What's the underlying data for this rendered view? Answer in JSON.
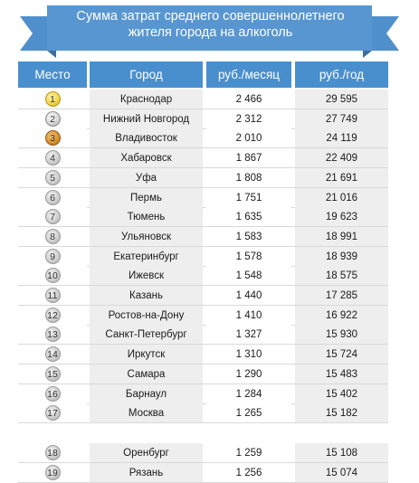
{
  "title": {
    "line1": "Сумма затрат среднего совершеннолетнего",
    "line2": "жителя города на алкоголь"
  },
  "colors": {
    "ribbon": "#4e8fcc",
    "ribbon_dark": "#3a6f9f",
    "header": "#4a8fcd",
    "alt_column": "#eeeeee"
  },
  "chart_data": {
    "type": "table",
    "columns": [
      "Место",
      "Город",
      "руб./месяц",
      "руб./год"
    ],
    "rows": [
      {
        "rank": "1",
        "city": "Краснодар",
        "month": "2 466",
        "year": "29 595",
        "medal": "gold"
      },
      {
        "rank": "2",
        "city": "Нижний Новгород",
        "month": "2 312",
        "year": "27 749",
        "medal": "silver"
      },
      {
        "rank": "3",
        "city": "Владивосток",
        "month": "2 010",
        "year": "24 119",
        "medal": "bronze"
      },
      {
        "rank": "4",
        "city": "Хабаровск",
        "month": "1 867",
        "year": "22 409",
        "medal": "grey"
      },
      {
        "rank": "5",
        "city": "Уфа",
        "month": "1 808",
        "year": "21 691",
        "medal": "grey"
      },
      {
        "rank": "6",
        "city": "Пермь",
        "month": "1 751",
        "year": "21 016",
        "medal": "grey"
      },
      {
        "rank": "7",
        "city": "Тюмень",
        "month": "1 635",
        "year": "19 623",
        "medal": "grey"
      },
      {
        "rank": "8",
        "city": "Ульяновск",
        "month": "1 583",
        "year": "18 991",
        "medal": "grey"
      },
      {
        "rank": "9",
        "city": "Екатеринбург",
        "month": "1 578",
        "year": "18 939",
        "medal": "grey"
      },
      {
        "rank": "10",
        "city": "Ижевск",
        "month": "1 548",
        "year": "18 575",
        "medal": "grey"
      },
      {
        "rank": "11",
        "city": "Казань",
        "month": "1 440",
        "year": "17 285",
        "medal": "grey"
      },
      {
        "rank": "12",
        "city": "Ростов-на-Дону",
        "month": "1 410",
        "year": "16 922",
        "medal": "grey"
      },
      {
        "rank": "13",
        "city": "Санкт-Петербург",
        "month": "1 327",
        "year": "15 930",
        "medal": "grey"
      },
      {
        "rank": "14",
        "city": "Иркутск",
        "month": "1 310",
        "year": "15 724",
        "medal": "grey"
      },
      {
        "rank": "15",
        "city": "Самара",
        "month": "1 290",
        "year": "15 483",
        "medal": "grey"
      },
      {
        "rank": "16",
        "city": "Барнаул",
        "month": "1 284",
        "year": "15 402",
        "medal": "grey"
      },
      {
        "rank": "17",
        "city": "Москва",
        "month": "1 265",
        "year": "15 182",
        "medal": "grey"
      },
      {
        "rank": "18",
        "city": "Оренбург",
        "month": "1 259",
        "year": "15 108",
        "medal": "grey"
      },
      {
        "rank": "19",
        "city": "Рязань",
        "month": "1 256",
        "year": "15 074",
        "medal": "grey"
      }
    ]
  }
}
